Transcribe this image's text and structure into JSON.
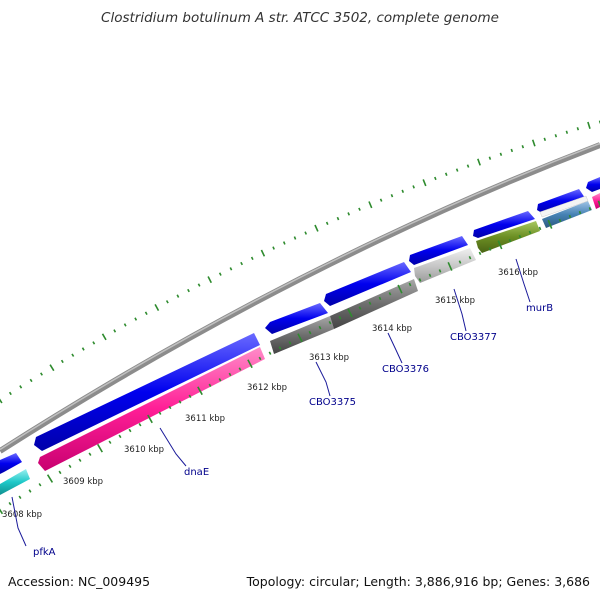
{
  "title": "Clostridium botulinum A str. ATCC 3502, complete genome",
  "footer": {
    "accession": "Accession: NC_009495",
    "summary": "Topology: circular; Length: 3,886,916 bp; Genes: 3,686"
  },
  "colors": {
    "backbone": "#8c8c8c",
    "forward_cds": "#0000ee",
    "tick": "#2e8b2e",
    "gene_label": "#00008b",
    "kbp_label": "#222222"
  },
  "kbp_labels": [
    "3608 kbp",
    "3609 kbp",
    "3610 kbp",
    "3611 kbp",
    "3612 kbp",
    "3613 kbp",
    "3614 kbp",
    "3615 kbp",
    "3616 kbp"
  ],
  "genes": [
    {
      "name": "pfkA",
      "color": "#1ec8c8"
    },
    {
      "name": "dnaE",
      "color": "#ff1e96"
    },
    {
      "name": "CBO3375",
      "color": "#6e6e6e"
    },
    {
      "name": "CBO3376",
      "color": "#6e6e6e"
    },
    {
      "name": "CBO3377",
      "color": "#c8c8c8"
    },
    {
      "name": "murB",
      "color": "#6b8e23"
    },
    {
      "name": "",
      "color": "#4682b4"
    },
    {
      "name": "",
      "color": "#ff1e96"
    }
  ]
}
